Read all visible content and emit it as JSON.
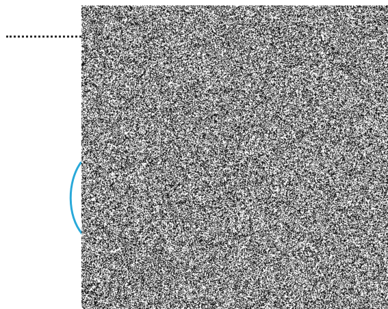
{
  "colors": {
    "background": "#ffffff",
    "arc": "#29a9d9",
    "dotted_line": "#2a2a2a",
    "noise_dark": "#111111",
    "noise_light": "#ffffff"
  },
  "noise": {
    "dark_fraction": 0.5
  }
}
